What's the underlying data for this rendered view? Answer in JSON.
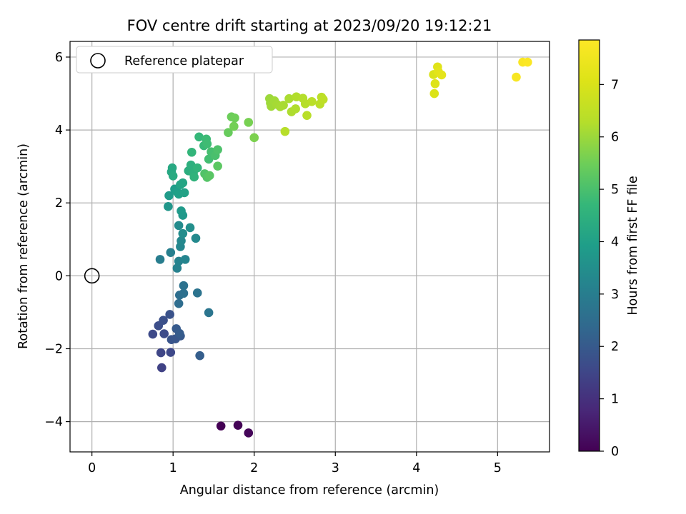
{
  "chart_data": {
    "type": "scatter",
    "title": "FOV centre drift starting at 2023/09/20 19:12:21",
    "xlabel": "Angular distance from reference (arcmin)",
    "ylabel": "Rotation from reference (arcmin)",
    "xlim": [
      -0.27,
      5.64
    ],
    "ylim": [
      -4.83,
      6.43
    ],
    "x_ticks": [
      0,
      1,
      2,
      3,
      4,
      5
    ],
    "y_ticks": [
      -4,
      -2,
      0,
      2,
      4,
      6
    ],
    "grid": true,
    "legend": {
      "placement": "top-left",
      "entries": [
        "Reference platepar"
      ]
    },
    "reference_point": {
      "x": 0,
      "y": 0
    },
    "colorbar": {
      "label": "Hours from first FF file",
      "colormap": "viridis",
      "range": [
        0,
        7.85
      ],
      "ticks": [
        0,
        1,
        2,
        3,
        4,
        5,
        6,
        7
      ]
    },
    "points": [
      {
        "x": 1.59,
        "y": -4.12,
        "t": 0.0
      },
      {
        "x": 1.8,
        "y": -4.1,
        "t": 0.05
      },
      {
        "x": 1.93,
        "y": -4.31,
        "t": 0.1
      },
      {
        "x": 0.86,
        "y": -2.52,
        "t": 1.4
      },
      {
        "x": 0.85,
        "y": -2.11,
        "t": 1.5
      },
      {
        "x": 0.97,
        "y": -2.1,
        "t": 1.55
      },
      {
        "x": 0.75,
        "y": -1.6,
        "t": 1.6
      },
      {
        "x": 0.89,
        "y": -1.59,
        "t": 1.65
      },
      {
        "x": 0.82,
        "y": -1.37,
        "t": 1.7
      },
      {
        "x": 0.88,
        "y": -1.22,
        "t": 1.75
      },
      {
        "x": 0.96,
        "y": -1.06,
        "t": 1.8
      },
      {
        "x": 0.98,
        "y": -1.75,
        "t": 1.85
      },
      {
        "x": 1.03,
        "y": -1.73,
        "t": 1.9
      },
      {
        "x": 1.09,
        "y": -1.65,
        "t": 1.95
      },
      {
        "x": 1.04,
        "y": -1.45,
        "t": 2.0
      },
      {
        "x": 1.08,
        "y": -1.58,
        "t": 2.05
      },
      {
        "x": 1.33,
        "y": -2.19,
        "t": 2.1
      },
      {
        "x": 1.07,
        "y": -0.76,
        "t": 2.5
      },
      {
        "x": 1.08,
        "y": -0.53,
        "t": 2.55
      },
      {
        "x": 1.13,
        "y": -0.48,
        "t": 2.6
      },
      {
        "x": 1.13,
        "y": -0.27,
        "t": 2.65
      },
      {
        "x": 1.3,
        "y": -0.47,
        "t": 2.7
      },
      {
        "x": 1.44,
        "y": -1.01,
        "t": 2.75
      },
      {
        "x": 0.84,
        "y": 0.45,
        "t": 3.0
      },
      {
        "x": 0.97,
        "y": 0.64,
        "t": 3.05
      },
      {
        "x": 1.05,
        "y": 0.21,
        "t": 3.1
      },
      {
        "x": 1.07,
        "y": 0.4,
        "t": 3.15
      },
      {
        "x": 1.15,
        "y": 0.45,
        "t": 3.2
      },
      {
        "x": 1.09,
        "y": 0.8,
        "t": 3.25
      },
      {
        "x": 1.1,
        "y": 0.96,
        "t": 3.3
      },
      {
        "x": 1.28,
        "y": 1.03,
        "t": 3.35
      },
      {
        "x": 1.07,
        "y": 1.38,
        "t": 3.4
      },
      {
        "x": 1.12,
        "y": 1.16,
        "t": 3.45
      },
      {
        "x": 1.21,
        "y": 1.32,
        "t": 3.5
      },
      {
        "x": 0.94,
        "y": 1.9,
        "t": 3.7
      },
      {
        "x": 1.12,
        "y": 1.66,
        "t": 3.75
      },
      {
        "x": 1.1,
        "y": 1.78,
        "t": 3.8
      },
      {
        "x": 0.95,
        "y": 2.2,
        "t": 3.85
      },
      {
        "x": 1.02,
        "y": 2.38,
        "t": 3.9
      },
      {
        "x": 1.05,
        "y": 2.3,
        "t": 3.95
      },
      {
        "x": 1.07,
        "y": 2.24,
        "t": 4.0
      },
      {
        "x": 1.14,
        "y": 2.28,
        "t": 4.05
      },
      {
        "x": 1.09,
        "y": 2.5,
        "t": 4.1
      },
      {
        "x": 1.12,
        "y": 2.55,
        "t": 4.15
      },
      {
        "x": 0.98,
        "y": 2.85,
        "t": 4.2
      },
      {
        "x": 0.99,
        "y": 2.96,
        "t": 4.25
      },
      {
        "x": 1.0,
        "y": 2.74,
        "t": 4.3
      },
      {
        "x": 1.19,
        "y": 2.88,
        "t": 4.4
      },
      {
        "x": 1.22,
        "y": 3.04,
        "t": 4.45
      },
      {
        "x": 1.25,
        "y": 2.82,
        "t": 4.5
      },
      {
        "x": 1.26,
        "y": 2.71,
        "t": 4.55
      },
      {
        "x": 1.3,
        "y": 2.96,
        "t": 4.6
      },
      {
        "x": 1.23,
        "y": 3.39,
        "t": 4.65
      },
      {
        "x": 1.32,
        "y": 3.81,
        "t": 4.7
      },
      {
        "x": 1.38,
        "y": 3.57,
        "t": 4.75
      },
      {
        "x": 1.41,
        "y": 3.75,
        "t": 4.8
      },
      {
        "x": 1.42,
        "y": 3.62,
        "t": 4.85
      },
      {
        "x": 1.44,
        "y": 3.2,
        "t": 4.9
      },
      {
        "x": 1.47,
        "y": 3.4,
        "t": 4.95
      },
      {
        "x": 1.52,
        "y": 3.3,
        "t": 5.0
      },
      {
        "x": 1.55,
        "y": 3.46,
        "t": 5.05
      },
      {
        "x": 1.39,
        "y": 2.8,
        "t": 5.1
      },
      {
        "x": 1.42,
        "y": 2.7,
        "t": 5.15
      },
      {
        "x": 1.45,
        "y": 2.75,
        "t": 5.2
      },
      {
        "x": 1.55,
        "y": 3.01,
        "t": 5.25
      },
      {
        "x": 1.68,
        "y": 3.93,
        "t": 5.4
      },
      {
        "x": 1.72,
        "y": 4.36,
        "t": 5.45
      },
      {
        "x": 1.76,
        "y": 4.33,
        "t": 5.5
      },
      {
        "x": 1.75,
        "y": 4.1,
        "t": 5.55
      },
      {
        "x": 1.93,
        "y": 4.21,
        "t": 5.6
      },
      {
        "x": 2.0,
        "y": 3.79,
        "t": 5.65
      },
      {
        "x": 2.19,
        "y": 4.86,
        "t": 6.0
      },
      {
        "x": 2.2,
        "y": 4.74,
        "t": 6.02
      },
      {
        "x": 2.21,
        "y": 4.65,
        "t": 6.05
      },
      {
        "x": 2.25,
        "y": 4.8,
        "t": 6.07
      },
      {
        "x": 2.28,
        "y": 4.7,
        "t": 6.1
      },
      {
        "x": 2.32,
        "y": 4.64,
        "t": 6.12
      },
      {
        "x": 2.36,
        "y": 4.68,
        "t": 6.15
      },
      {
        "x": 2.43,
        "y": 4.86,
        "t": 6.17
      },
      {
        "x": 2.46,
        "y": 4.5,
        "t": 6.2
      },
      {
        "x": 2.51,
        "y": 4.58,
        "t": 6.22
      },
      {
        "x": 2.52,
        "y": 4.91,
        "t": 6.25
      },
      {
        "x": 2.6,
        "y": 4.87,
        "t": 6.27
      },
      {
        "x": 2.63,
        "y": 4.72,
        "t": 6.3
      },
      {
        "x": 2.38,
        "y": 3.96,
        "t": 6.32
      },
      {
        "x": 2.65,
        "y": 4.4,
        "t": 6.35
      },
      {
        "x": 2.71,
        "y": 4.78,
        "t": 6.37
      },
      {
        "x": 2.81,
        "y": 4.71,
        "t": 6.4
      },
      {
        "x": 2.83,
        "y": 4.9,
        "t": 6.42
      },
      {
        "x": 2.85,
        "y": 4.84,
        "t": 6.45
      },
      {
        "x": 4.21,
        "y": 5.52,
        "t": 7.0
      },
      {
        "x": 4.22,
        "y": 5.0,
        "t": 7.05
      },
      {
        "x": 4.23,
        "y": 5.27,
        "t": 7.1
      },
      {
        "x": 4.26,
        "y": 5.73,
        "t": 7.15
      },
      {
        "x": 4.27,
        "y": 5.6,
        "t": 7.2
      },
      {
        "x": 4.31,
        "y": 5.51,
        "t": 7.25
      },
      {
        "x": 5.23,
        "y": 5.45,
        "t": 7.7
      },
      {
        "x": 5.31,
        "y": 5.86,
        "t": 7.75
      },
      {
        "x": 5.37,
        "y": 5.86,
        "t": 7.8
      }
    ]
  }
}
